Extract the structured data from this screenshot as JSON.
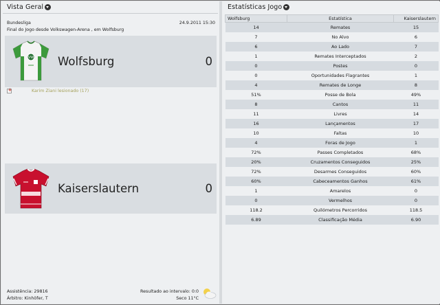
{
  "overview": {
    "title": "Vista Geral",
    "competition": "Bundesliga",
    "datetime": "24.9.2011 15:30",
    "subtitle": "Final do Jogo desde Volkswagen-Arena , em Wolfsburg",
    "home": {
      "name": "Wolfsburg",
      "score": "0"
    },
    "away": {
      "name": "Kaiserslautern",
      "score": "0"
    },
    "event": "Karim Ziani lesionado (17)",
    "attendance": "Assistência: 29816",
    "referee": "Árbitro: Kinhöfer, T",
    "halftime": "Resultado ao intervalo: 0:0",
    "weather": "Seco 11°C"
  },
  "stats": {
    "title": "Estatísticas Jogo",
    "header_home": "Wolfsburg",
    "header_stat": "Estatística",
    "header_away": "Kaiserslautern",
    "rows": [
      {
        "home": "14",
        "label": "Remates",
        "away": "15"
      },
      {
        "home": "7",
        "label": "No Alvo",
        "away": "6"
      },
      {
        "home": "6",
        "label": "Ao Lado",
        "away": "7"
      },
      {
        "home": "1",
        "label": "Remates Interceptados",
        "away": "2"
      },
      {
        "home": "0",
        "label": "Postes",
        "away": "0"
      },
      {
        "home": "0",
        "label": "Oportunidades Flagrantes",
        "away": "1"
      },
      {
        "home": "4",
        "label": "Remates de Longe",
        "away": "8"
      },
      {
        "home": "51%",
        "label": "Posse de Bola",
        "away": "49%"
      },
      {
        "home": "8",
        "label": "Cantos",
        "away": "11"
      },
      {
        "home": "11",
        "label": "Livres",
        "away": "14"
      },
      {
        "home": "16",
        "label": "Lançamentos",
        "away": "17"
      },
      {
        "home": "10",
        "label": "Faltas",
        "away": "10"
      },
      {
        "home": "4",
        "label": "Foras de Jogo",
        "away": "1"
      },
      {
        "home": "72%",
        "label": "Passes Completados",
        "away": "68%"
      },
      {
        "home": "20%",
        "label": "Cruzamentos Conseguidos",
        "away": "25%"
      },
      {
        "home": "72%",
        "label": "Desarmes Conseguidos",
        "away": "60%"
      },
      {
        "home": "60%",
        "label": "Cabeceamentos Ganhos",
        "away": "61%"
      },
      {
        "home": "1",
        "label": "Amarelos",
        "away": "0"
      },
      {
        "home": "0",
        "label": "Vermelhos",
        "away": "0"
      },
      {
        "home": "118.2",
        "label": "Quilómetros Percorridos",
        "away": "118.5"
      },
      {
        "home": "6.89",
        "label": "Classificação Média",
        "away": "6.90"
      }
    ]
  },
  "colors": {
    "wolfsburg_green": "#3c9a3c",
    "kaiserslautern_red": "#c8102e"
  },
  "icons": {
    "dropdown": "chevron-down-icon",
    "injury": "injury-icon",
    "weather": "cloud-sun-icon"
  }
}
